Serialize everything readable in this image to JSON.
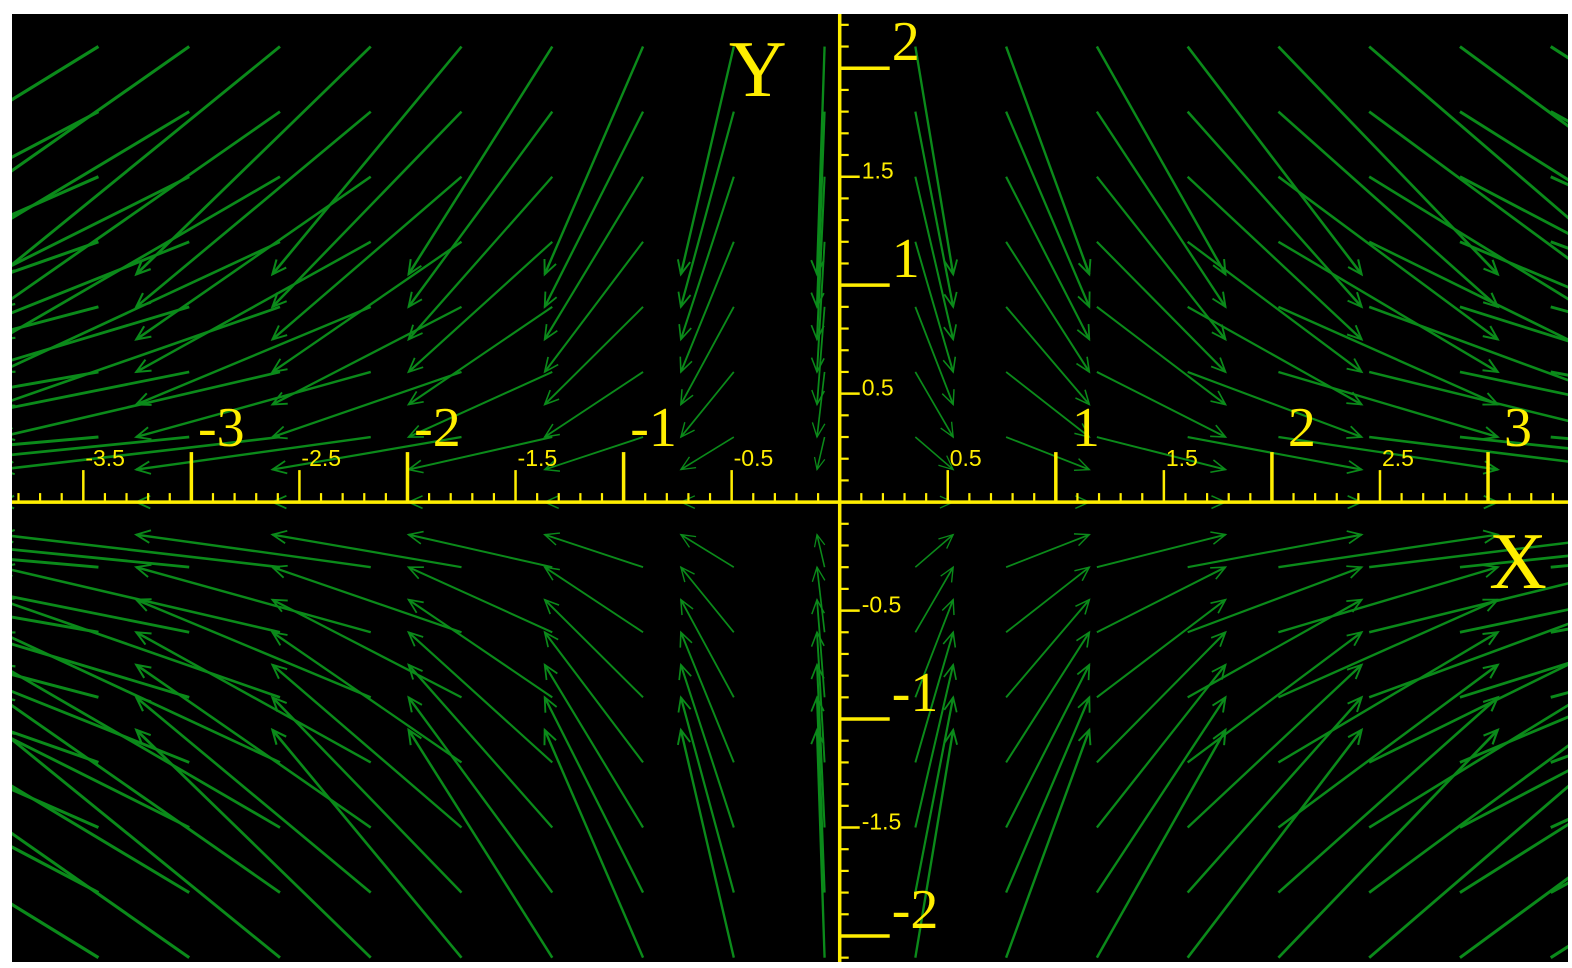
{
  "chart_data": {
    "type": "vector_field",
    "field": {
      "u": "x",
      "v": "-y",
      "description": "saddle flow"
    },
    "xlim": [
      -3.83,
      3.37
    ],
    "ylim": [
      -2.12,
      2.25
    ],
    "xlabel": "X",
    "ylabel": "Y",
    "grid": false,
    "legend": "none",
    "x_major_ticks": [
      {
        "value": -3,
        "label": "-3"
      },
      {
        "value": -2,
        "label": "-2"
      },
      {
        "value": -1,
        "label": "-1"
      },
      {
        "value": 1,
        "label": "1"
      },
      {
        "value": 2,
        "label": "2"
      },
      {
        "value": 3,
        "label": "3"
      }
    ],
    "x_minor_labels": [
      {
        "value": -3.5,
        "label": "-3.5"
      },
      {
        "value": -2.5,
        "label": "-2.5"
      },
      {
        "value": -1.5,
        "label": "-1.5"
      },
      {
        "value": -0.5,
        "label": "-0.5"
      },
      {
        "value": 0.5,
        "label": "0.5"
      },
      {
        "value": 1.5,
        "label": "1.5"
      },
      {
        "value": 2.5,
        "label": "2.5"
      }
    ],
    "y_major_ticks": [
      {
        "value": 2,
        "label": "2"
      },
      {
        "value": 1,
        "label": "1"
      },
      {
        "value": -1,
        "label": "-1"
      },
      {
        "value": -2,
        "label": "-2"
      }
    ],
    "y_minor_labels": [
      {
        "value": 1.5,
        "label": "1.5"
      },
      {
        "value": 0.5,
        "label": "0.5"
      },
      {
        "value": -0.5,
        "label": "-0.5"
      },
      {
        "value": -1.5,
        "label": "-1.5"
      }
    ],
    "grid_x": [
      -3.85,
      -3.43,
      -3.01,
      -2.59,
      -2.17,
      -1.75,
      -1.33,
      -0.91,
      -0.49,
      -0.07,
      0.35,
      0.77,
      1.19,
      1.61,
      2.03,
      2.45,
      2.87,
      3.29
    ],
    "grid_y": [
      2.1,
      1.8,
      1.5,
      1.2,
      0.9,
      0.6,
      0.3,
      0.0,
      -0.3,
      -0.6,
      -0.9,
      -1.2,
      -1.5,
      -1.8,
      -2.1
    ],
    "colors": {
      "background": "#000000",
      "axes": "#ffee00",
      "arrows": "#0b8a1a",
      "page": "#ffffff"
    }
  }
}
